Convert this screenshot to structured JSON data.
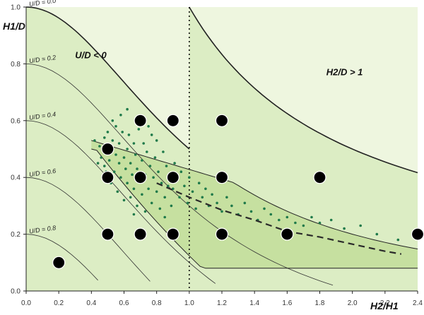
{
  "chart_data": {
    "type": "scatter",
    "x_axis": {
      "label": "H2/H1",
      "min": 0.0,
      "max": 2.4,
      "ticks": [
        "0.0",
        "0.2",
        "0.4",
        "0.6",
        "0.8",
        "1.0",
        "1.2",
        "1.4",
        "1.6",
        "1.8",
        "2.0",
        "2.2",
        "2.4"
      ]
    },
    "y_axis": {
      "label": "H1/D",
      "min": 0.0,
      "max": 1.0,
      "ticks": [
        "0.0",
        "0.2",
        "0.4",
        "0.6",
        "0.8",
        "1.0"
      ]
    },
    "region_labels": [
      "U/D < 0",
      "H2/D > 1"
    ],
    "ud_curves": [
      {
        "label": "U/D = 0.0",
        "u": 0.0
      },
      {
        "label": "U/D = 0.2",
        "u": 0.2
      },
      {
        "label": "U/D = 0.4",
        "u": 0.4
      },
      {
        "label": "U/D = 0.6",
        "u": 0.6
      },
      {
        "label": "U/D = 0.8",
        "u": 0.8
      }
    ],
    "reference_line_x": 1.0,
    "dashed_trend": [
      [
        0.8,
        0.38
      ],
      [
        1.0,
        0.33
      ],
      [
        1.2,
        0.285
      ],
      [
        1.4,
        0.25
      ],
      [
        1.6,
        0.21
      ],
      [
        1.8,
        0.19
      ],
      [
        2.0,
        0.165
      ],
      [
        2.2,
        0.14
      ],
      [
        2.3,
        0.13
      ]
    ],
    "large_points": [
      [
        0.2,
        0.1
      ],
      [
        0.5,
        0.5
      ],
      [
        0.5,
        0.4
      ],
      [
        0.5,
        0.2
      ],
      [
        0.7,
        0.6
      ],
      [
        0.7,
        0.4
      ],
      [
        0.7,
        0.2
      ],
      [
        0.9,
        0.6
      ],
      [
        0.9,
        0.4
      ],
      [
        0.9,
        0.2
      ],
      [
        1.2,
        0.6
      ],
      [
        1.2,
        0.4
      ],
      [
        1.2,
        0.2
      ],
      [
        1.6,
        0.2
      ],
      [
        1.8,
        0.4
      ],
      [
        2.4,
        0.2
      ]
    ],
    "small_points": [
      [
        0.42,
        0.53
      ],
      [
        0.44,
        0.45
      ],
      [
        0.45,
        0.51
      ],
      [
        0.46,
        0.47
      ],
      [
        0.48,
        0.44
      ],
      [
        0.48,
        0.54
      ],
      [
        0.49,
        0.42
      ],
      [
        0.5,
        0.56
      ],
      [
        0.51,
        0.46
      ],
      [
        0.52,
        0.38
      ],
      [
        0.53,
        0.53
      ],
      [
        0.54,
        0.42
      ],
      [
        0.55,
        0.48
      ],
      [
        0.55,
        0.58
      ],
      [
        0.56,
        0.35
      ],
      [
        0.57,
        0.45
      ],
      [
        0.57,
        0.52
      ],
      [
        0.58,
        0.4
      ],
      [
        0.59,
        0.56
      ],
      [
        0.6,
        0.32
      ],
      [
        0.6,
        0.47
      ],
      [
        0.61,
        0.43
      ],
      [
        0.62,
        0.5
      ],
      [
        0.62,
        0.38
      ],
      [
        0.63,
        0.55
      ],
      [
        0.64,
        0.33
      ],
      [
        0.64,
        0.45
      ],
      [
        0.65,
        0.41
      ],
      [
        0.66,
        0.52
      ],
      [
        0.66,
        0.36
      ],
      [
        0.67,
        0.48
      ],
      [
        0.68,
        0.3
      ],
      [
        0.68,
        0.43
      ],
      [
        0.69,
        0.57
      ],
      [
        0.7,
        0.39
      ],
      [
        0.71,
        0.46
      ],
      [
        0.71,
        0.34
      ],
      [
        0.72,
        0.52
      ],
      [
        0.73,
        0.41
      ],
      [
        0.73,
        0.28
      ],
      [
        0.74,
        0.49
      ],
      [
        0.75,
        0.36
      ],
      [
        0.76,
        0.44
      ],
      [
        0.77,
        0.55
      ],
      [
        0.77,
        0.31
      ],
      [
        0.78,
        0.4
      ],
      [
        0.79,
        0.47
      ],
      [
        0.8,
        0.35
      ],
      [
        0.8,
        0.53
      ],
      [
        0.81,
        0.42
      ],
      [
        0.82,
        0.29
      ],
      [
        0.83,
        0.38
      ],
      [
        0.84,
        0.49
      ],
      [
        0.85,
        0.33
      ],
      [
        0.86,
        0.44
      ],
      [
        0.87,
        0.37
      ],
      [
        0.88,
        0.41
      ],
      [
        0.89,
        0.3
      ],
      [
        0.9,
        0.36
      ],
      [
        0.91,
        0.45
      ],
      [
        0.92,
        0.39
      ],
      [
        0.94,
        0.33
      ],
      [
        0.95,
        0.42
      ],
      [
        0.97,
        0.37
      ],
      [
        0.99,
        0.31
      ],
      [
        1.0,
        0.4
      ],
      [
        1.02,
        0.35
      ],
      [
        1.04,
        0.29
      ],
      [
        1.06,
        0.38
      ],
      [
        1.08,
        0.33
      ],
      [
        1.1,
        0.36
      ],
      [
        1.12,
        0.3
      ],
      [
        1.14,
        0.34
      ],
      [
        1.17,
        0.31
      ],
      [
        1.2,
        0.28
      ],
      [
        1.23,
        0.33
      ],
      [
        1.26,
        0.3
      ],
      [
        1.3,
        0.27
      ],
      [
        1.34,
        0.31
      ],
      [
        1.38,
        0.28
      ],
      [
        1.42,
        0.25
      ],
      [
        1.46,
        0.29
      ],
      [
        1.5,
        0.27
      ],
      [
        1.55,
        0.25
      ],
      [
        1.6,
        0.26
      ],
      [
        1.65,
        0.24
      ],
      [
        1.7,
        0.23
      ],
      [
        1.75,
        0.26
      ],
      [
        1.8,
        0.24
      ],
      [
        1.87,
        0.25
      ],
      [
        1.95,
        0.22
      ],
      [
        2.05,
        0.23
      ],
      [
        2.15,
        0.2
      ],
      [
        2.28,
        0.18
      ],
      [
        0.58,
        0.62
      ],
      [
        0.62,
        0.64
      ],
      [
        0.53,
        0.6
      ],
      [
        0.75,
        0.58
      ],
      [
        0.66,
        0.27
      ],
      [
        0.85,
        0.26
      ]
    ]
  }
}
